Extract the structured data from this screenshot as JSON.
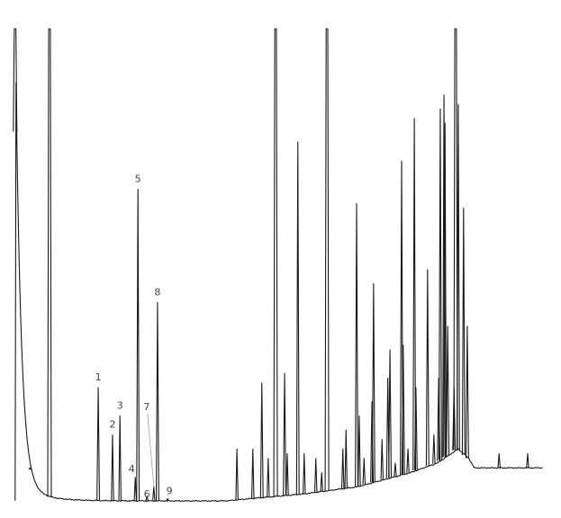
{
  "chart_data": {
    "type": "line",
    "title": "",
    "xlabel": "",
    "ylabel": "",
    "x_units": "relative retention (0-100)",
    "y_units": "relative intensity (0-100)",
    "xlim": [
      0,
      100
    ],
    "ylim": [
      0,
      100
    ],
    "grid": false,
    "axes_visible": false,
    "line_color": "#1a1a1a",
    "baseline": [
      [
        0,
        0
      ],
      [
        10,
        0
      ],
      [
        40,
        0
      ],
      [
        55,
        1.5
      ],
      [
        65,
        3
      ],
      [
        75,
        6
      ],
      [
        80,
        8
      ],
      [
        84,
        11
      ],
      [
        86,
        9
      ],
      [
        87,
        7
      ],
      [
        100,
        7
      ]
    ],
    "peaks": [
      {
        "x": 0.3,
        "y": 110
      },
      {
        "x": 3.1,
        "y": 7
      },
      {
        "x": 6.8,
        "y": 110
      },
      {
        "x": 16.0,
        "y": 24,
        "label": "1"
      },
      {
        "x": 18.7,
        "y": 14,
        "label": "2"
      },
      {
        "x": 20.1,
        "y": 18,
        "label": "3"
      },
      {
        "x": 23.0,
        "y": 5,
        "label": "4"
      },
      {
        "x": 23.5,
        "y": 66,
        "label": "5"
      },
      {
        "x": 25.2,
        "y": 1,
        "label": "6"
      },
      {
        "x": 26.5,
        "y": 3,
        "label": "7",
        "leader": true
      },
      {
        "x": 27.2,
        "y": 42,
        "label": "8"
      },
      {
        "x": 29.1,
        "y": 0.5,
        "label": "9"
      },
      {
        "x": 42.2,
        "y": 11
      },
      {
        "x": 45.2,
        "y": 11
      },
      {
        "x": 46.9,
        "y": 25
      },
      {
        "x": 48.1,
        "y": 9
      },
      {
        "x": 49.5,
        "y": 110
      },
      {
        "x": 51.2,
        "y": 27
      },
      {
        "x": 51.7,
        "y": 10
      },
      {
        "x": 53.7,
        "y": 76
      },
      {
        "x": 54.9,
        "y": 10
      },
      {
        "x": 57.1,
        "y": 9
      },
      {
        "x": 58.2,
        "y": 6
      },
      {
        "x": 59.2,
        "y": 110
      },
      {
        "x": 62.2,
        "y": 11
      },
      {
        "x": 62.8,
        "y": 15
      },
      {
        "x": 64.8,
        "y": 63
      },
      {
        "x": 65.3,
        "y": 18
      },
      {
        "x": 66.2,
        "y": 9
      },
      {
        "x": 67.7,
        "y": 21
      },
      {
        "x": 68.0,
        "y": 46
      },
      {
        "x": 69.6,
        "y": 13
      },
      {
        "x": 70.7,
        "y": 26
      },
      {
        "x": 71.1,
        "y": 32
      },
      {
        "x": 72.1,
        "y": 8
      },
      {
        "x": 73.3,
        "y": 72
      },
      {
        "x": 73.6,
        "y": 33
      },
      {
        "x": 74.5,
        "y": 11
      },
      {
        "x": 75.7,
        "y": 81
      },
      {
        "x": 76.0,
        "y": 24
      },
      {
        "x": 78.2,
        "y": 49
      },
      {
        "x": 79.4,
        "y": 14
      },
      {
        "x": 80.3,
        "y": 26
      },
      {
        "x": 80.6,
        "y": 83
      },
      {
        "x": 81.3,
        "y": 86
      },
      {
        "x": 81.5,
        "y": 80
      },
      {
        "x": 82.0,
        "y": 37
      },
      {
        "x": 83.2,
        "y": 24
      },
      {
        "x": 83.5,
        "y": 110
      },
      {
        "x": 84.0,
        "y": 84
      },
      {
        "x": 85.0,
        "y": 62
      },
      {
        "x": 85.7,
        "y": 37
      },
      {
        "x": 91.7,
        "y": 10
      },
      {
        "x": 97.1,
        "y": 10
      }
    ]
  }
}
